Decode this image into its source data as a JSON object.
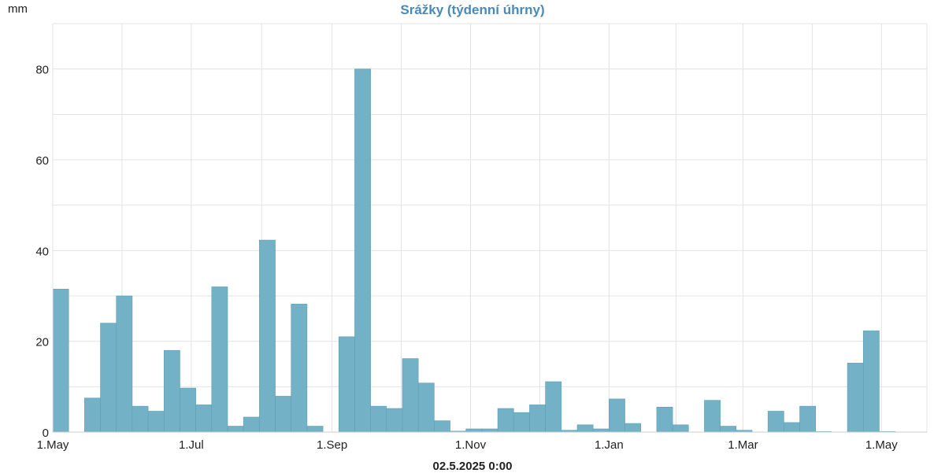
{
  "chart_data": {
    "type": "bar",
    "title": "Srážky (týdenní úhrny)",
    "ylabel": "mm",
    "footer": "02.5.2025 0:00",
    "ylim": [
      0,
      90
    ],
    "yticks": [
      0,
      20,
      40,
      60,
      80
    ],
    "xticks": [
      {
        "date": "2024-05-01",
        "label": "1.May"
      },
      {
        "date": "2024-07-01",
        "label": "1.Jul"
      },
      {
        "date": "2024-09-01",
        "label": "1.Sep"
      },
      {
        "date": "2024-11-01",
        "label": "1.Nov"
      },
      {
        "date": "2025-01-01",
        "label": "1.Jan"
      },
      {
        "date": "2025-03-01",
        "label": "1.Mar"
      },
      {
        "date": "2025-05-01",
        "label": "1.May"
      }
    ],
    "xlim": [
      "2024-05-01",
      "2025-05-21"
    ],
    "grid": true,
    "bar_color": "#73b2c6",
    "x": [
      "2024-05-01",
      "2024-05-08",
      "2024-05-15",
      "2024-05-22",
      "2024-05-29",
      "2024-06-05",
      "2024-06-12",
      "2024-06-19",
      "2024-06-26",
      "2024-07-03",
      "2024-07-10",
      "2024-07-17",
      "2024-07-24",
      "2024-07-31",
      "2024-08-07",
      "2024-08-14",
      "2024-08-21",
      "2024-08-28",
      "2024-09-04",
      "2024-09-11",
      "2024-09-18",
      "2024-09-25",
      "2024-10-02",
      "2024-10-09",
      "2024-10-16",
      "2024-10-23",
      "2024-10-30",
      "2024-11-06",
      "2024-11-13",
      "2024-11-20",
      "2024-11-27",
      "2024-12-04",
      "2024-12-11",
      "2024-12-18",
      "2024-12-25",
      "2025-01-01",
      "2025-01-08",
      "2025-01-15",
      "2025-01-22",
      "2025-01-29",
      "2025-02-05",
      "2025-02-12",
      "2025-02-19",
      "2025-02-26",
      "2025-03-05",
      "2025-03-12",
      "2025-03-19",
      "2025-03-26",
      "2025-04-02",
      "2025-04-09",
      "2025-04-16",
      "2025-04-23",
      "2025-04-30",
      "2025-05-07",
      "2025-05-14"
    ],
    "values": [
      31.5,
      0,
      7.5,
      24,
      30,
      5.7,
      4.6,
      18,
      9.7,
      6,
      32,
      1.3,
      3.3,
      42.3,
      7.9,
      28.2,
      1.3,
      0,
      21,
      80,
      5.7,
      5.2,
      16.2,
      10.8,
      2.5,
      0.2,
      0.7,
      0.7,
      5.2,
      4.3,
      6,
      11.1,
      0.4,
      1.6,
      0.7,
      7.3,
      1.9,
      0,
      5.5,
      1.6,
      0,
      7,
      1.3,
      0.4,
      0,
      4.6,
      2.1,
      5.7,
      0.1,
      0,
      15.2,
      22.3,
      0.1,
      0,
      0
    ]
  }
}
